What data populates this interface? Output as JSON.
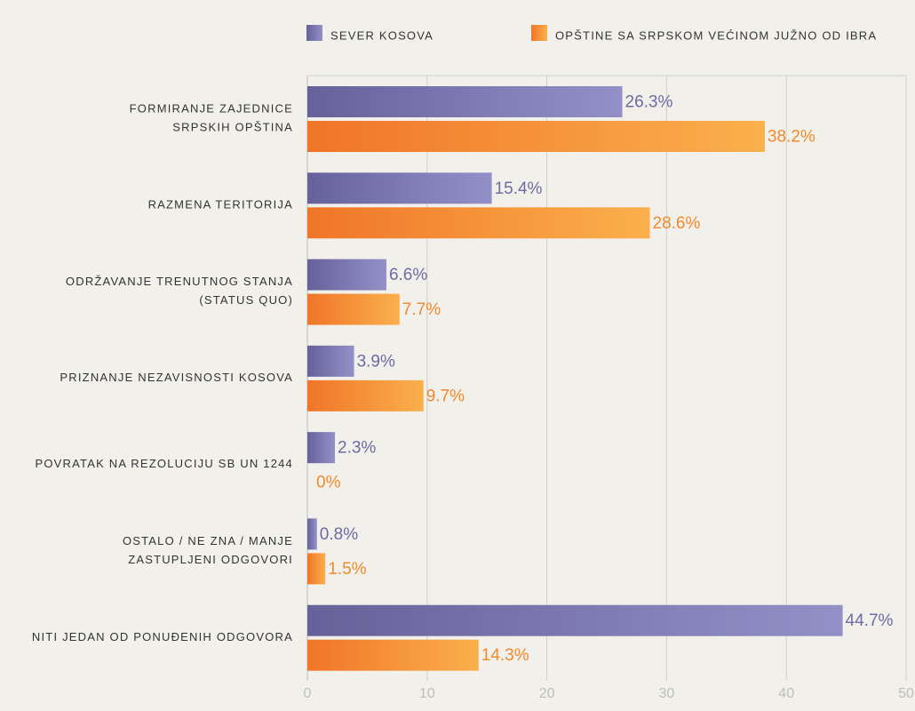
{
  "chart_data": {
    "type": "bar",
    "orientation": "horizontal",
    "categories": [
      [
        "FORMIRANJE ZAJEDNICE",
        "SRPSKIH OPŠTINA"
      ],
      [
        "RAZMENA TERITORIJA"
      ],
      [
        "ODRŽAVANJE TRENUTNOG STANJA",
        "(STATUS QUO)"
      ],
      [
        "PRIZNANJE NEZAVISNOSTI KOSOVA"
      ],
      [
        "POVRATAK NA REZOLUCIJU SB UN 1244"
      ],
      [
        "OSTALO / NE ZNA / MANJE",
        "ZASTUPLJENI ODGOVORI"
      ],
      [
        "NITI JEDAN OD PONUĐENIH ODGOVORA"
      ]
    ],
    "series": [
      {
        "name": "SEVER KOSOVA",
        "color": [
          "#67619a",
          "#9390c8"
        ],
        "label_color": "#6f6aa3",
        "values": [
          26.3,
          15.4,
          6.6,
          3.9,
          2.3,
          0.8,
          44.7
        ],
        "value_labels": [
          "26.3%",
          "15.4%",
          "6.6%",
          "3.9%",
          "2.3%",
          "0.8%",
          "44.7%"
        ]
      },
      {
        "name": "OPŠTINE SA SRPSKOM VEĆINOM JUŽNO OD IBRA",
        "color": [
          "#f07528",
          "#fbb04c"
        ],
        "label_color": "#f08a2a",
        "values": [
          38.2,
          28.6,
          7.7,
          9.7,
          0,
          1.5,
          14.3
        ],
        "value_labels": [
          "38.2%",
          "28.6%",
          "7.7%",
          "9.7%",
          "0%",
          "1.5%",
          "14.3%"
        ]
      }
    ],
    "xlim": [
      0,
      50
    ],
    "xticks": [
      0,
      10,
      20,
      30,
      40,
      50
    ],
    "grid": true
  }
}
